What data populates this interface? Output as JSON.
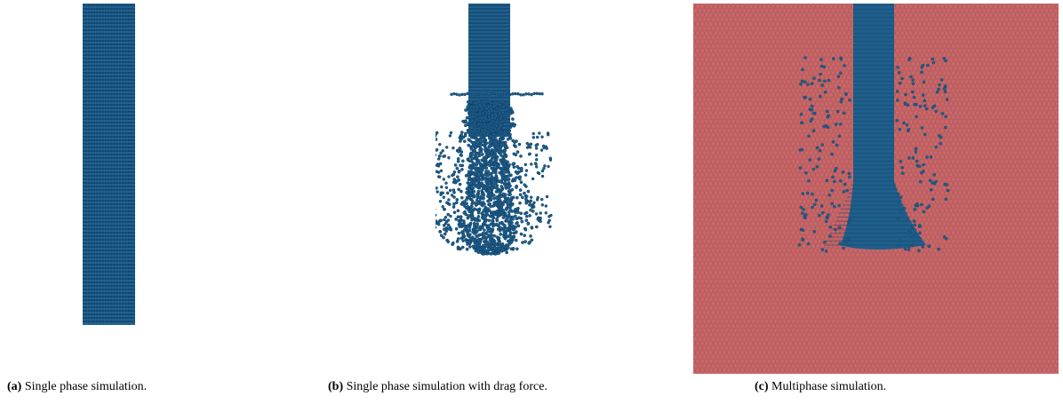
{
  "figure": {
    "panels": [
      {
        "id": "a",
        "tag": "(a)",
        "caption": "Single phase simulation."
      },
      {
        "id": "b",
        "tag": "(b)",
        "caption": "Single phase simulation with drag force."
      },
      {
        "id": "c",
        "tag": "(c)",
        "caption": "Multiphase simulation."
      }
    ]
  },
  "colors": {
    "particle": "#1f5f8b",
    "particle_dark": "#0f3f66",
    "fluid": "#c9686a",
    "fluid_dark": "#8f3f42",
    "background": "#ffffff"
  }
}
